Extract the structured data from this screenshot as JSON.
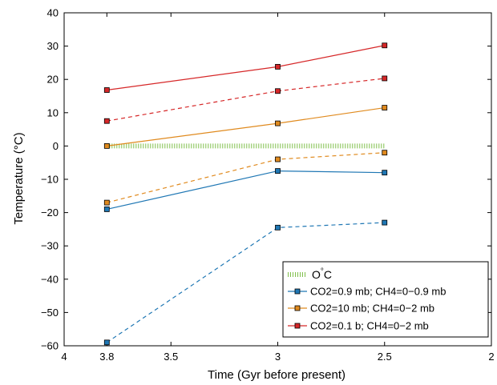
{
  "chart_data": {
    "type": "line",
    "xlabel": "Time (Gyr before present)",
    "ylabel": "Temperature (°C)",
    "xlim": [
      4,
      2
    ],
    "ylim": [
      -60,
      40
    ],
    "x_reversed": true,
    "xticks": [
      4,
      3.8,
      3.5,
      3,
      2.5,
      2
    ],
    "xtick_labels": [
      "4",
      "3.8",
      "3.5",
      "3",
      "2.5",
      "2"
    ],
    "yticks": [
      -60,
      -50,
      -40,
      -30,
      -20,
      -10,
      0,
      10,
      20,
      30,
      40
    ],
    "ytick_labels": [
      "−60",
      "−50",
      "−40",
      "−30",
      "−20",
      "−10",
      "0",
      "10",
      "20",
      "30",
      "40"
    ],
    "grid": false,
    "legend_position": "bottom-right",
    "reference_line": {
      "label": "O°C",
      "label_main": "O",
      "label_sup": "°",
      "label_tail": "C",
      "y": 0,
      "x_from": 3.8,
      "x_to": 2.5,
      "color": "#7fbf4a",
      "style": "dotted"
    },
    "series": [
      {
        "name": "CO2=0.9 mb; CH4=0−0.9 mb",
        "color": "#1f77b4",
        "style": "solid",
        "x": [
          3.8,
          3.0,
          2.5
        ],
        "values": [
          -19,
          -7.5,
          -8
        ]
      },
      {
        "name": "",
        "color": "#1f77b4",
        "style": "dashed",
        "x": [
          3.8,
          3.0,
          2.5
        ],
        "values": [
          -59,
          -24.5,
          -23
        ]
      },
      {
        "name": "CO2=10 mb; CH4=0−2 mb",
        "color": "#e08a1e",
        "style": "solid",
        "x": [
          3.8,
          3.0,
          2.5
        ],
        "values": [
          0,
          6.8,
          11.5
        ]
      },
      {
        "name": "",
        "color": "#e08a1e",
        "style": "dashed",
        "x": [
          3.8,
          3.0,
          2.5
        ],
        "values": [
          -17,
          -4,
          -2
        ]
      },
      {
        "name": "CO2=0.1 b; CH4=0−2 mb",
        "color": "#d62728",
        "style": "solid",
        "x": [
          3.8,
          3.0,
          2.5
        ],
        "values": [
          16.8,
          23.8,
          30.2
        ]
      },
      {
        "name": "",
        "color": "#d62728",
        "style": "dashed",
        "x": [
          3.8,
          3.0,
          2.5
        ],
        "values": [
          7.5,
          16.5,
          20.3
        ]
      }
    ]
  }
}
